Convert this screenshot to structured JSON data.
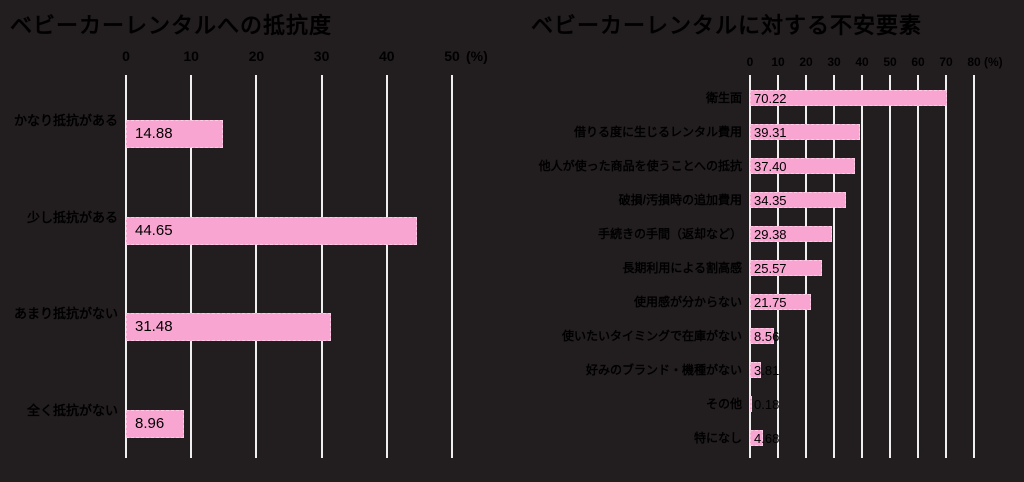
{
  "page": {
    "background_color": "#221D1F",
    "text_color": "#000000",
    "grid_color": "#EFEFEF",
    "bar_color": "#F9A5D1"
  },
  "chart_data": [
    {
      "type": "bar",
      "orientation": "horizontal",
      "title": "ベビーカーレンタルへの抵抗度",
      "unit_label": "(%)",
      "xlim": [
        0,
        50
      ],
      "x_ticks": [
        "0",
        "10",
        "20",
        "30",
        "40",
        "50"
      ],
      "grid": true,
      "categories": [
        "かなり抵抗がある",
        "少し抵抗がある",
        "あまり抵抗がない",
        "全く抵抗がない"
      ],
      "values": [
        14.88,
        44.65,
        31.48,
        8.96
      ],
      "value_labels": [
        "14.88",
        "44.65",
        "31.48",
        "8.96"
      ]
    },
    {
      "type": "bar",
      "orientation": "horizontal",
      "title": "ベビーカーレンタルに対する不安要素",
      "unit_label": "(%)",
      "xlim": [
        0,
        80
      ],
      "x_ticks": [
        "0",
        "10",
        "20",
        "30",
        "40",
        "50",
        "60",
        "70",
        "80"
      ],
      "grid": true,
      "categories": [
        "衛生面",
        "借りる度に生じるレンタル費用",
        "他人が使った商品を使うことへの抵抗",
        "破損/汚損時の追加費用",
        "手続きの手間（返却など）",
        "長期利用による割高感",
        "使用感が分からない",
        "使いたいタイミングで在庫がない",
        "好みのブランド・機種がない",
        "その他",
        "特になし"
      ],
      "values": [
        70.22,
        39.31,
        37.4,
        34.35,
        29.38,
        25.57,
        21.75,
        8.56,
        3.81,
        0.18,
        4.68
      ],
      "value_labels": [
        "70.22",
        "39.31",
        "37.40",
        "34.35",
        "29.38",
        "25.57",
        "21.75",
        "8.56",
        "3.81",
        "0.18",
        "4.68"
      ]
    }
  ]
}
